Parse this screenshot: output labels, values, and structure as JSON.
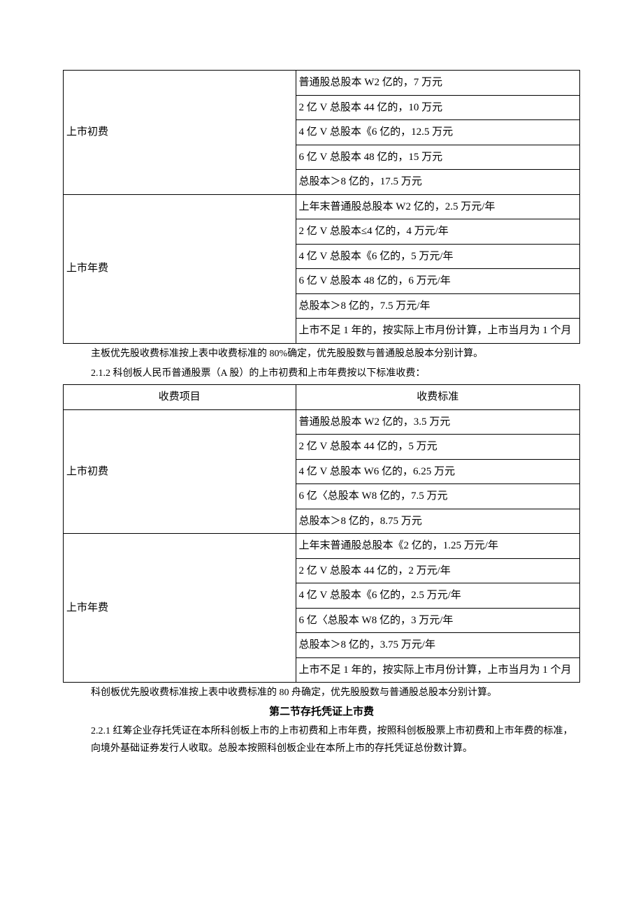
{
  "table1": {
    "rows": [
      {
        "left": "上市初费",
        "right": "普通股总股本 W2 亿的，7 万元",
        "rowspan": 5
      },
      {
        "right": "2 亿 V 总股本 44 亿的，10 万元"
      },
      {
        "right": "4 亿 V 总股本《6 亿的，12.5 万元"
      },
      {
        "right": "6 亿 V 总股本 48 亿的，15 万元"
      },
      {
        "right": "总股本＞8 亿的，17.5 万元"
      },
      {
        "left": "上市年费",
        "right": "上年末普通股总股本 W2 亿的，2.5 万元/年",
        "rowspan": 6
      },
      {
        "right": "2 亿 V 总股本≤4 亿的，4 万元/年"
      },
      {
        "right": "4 亿 V 总股本《6 亿的，5 万元/年"
      },
      {
        "right": "6 亿 V 总股本 48 亿的，6 万元/年"
      },
      {
        "right": "总股本＞8 亿的，7.5 万元/年"
      },
      {
        "right": "上市不足 1 年的，按实际上市月份计算，上市当月为 1 个月"
      }
    ]
  },
  "note1": "主板优先股收费标准按上表中收费标准的 80%确定，优先股股数与普通股总股本分别计算。",
  "heading212": "2.1.2 科创板人民币普通股票（A 股）的上市初费和上市年费按以下标准收费：",
  "table2": {
    "header_left": "收费项目",
    "header_right": "收费标准",
    "rows": [
      {
        "left": "上市初费",
        "right": "普通股总股本 W2 亿的，3.5 万元",
        "rowspan": 5
      },
      {
        "right": "2 亿 V 总股本 44 亿的，5 万元"
      },
      {
        "right": "4 亿 V 总股本 W6 亿的，6.25 万元"
      },
      {
        "right": "6 亿〈总股本 W8 亿的，7.5 万元"
      },
      {
        "right": "总股本＞8 亿的，8.75 万元"
      },
      {
        "left": "上市年费",
        "right": "上年末普通股总股本《2 亿的，1.25 万元/年",
        "rowspan": 6
      },
      {
        "right": "2 亿 V 总股本 44 亿的，2 万元/年"
      },
      {
        "right": "4 亿 V 总股本《6 亿的，2.5 万元/年"
      },
      {
        "right": "6 亿〈总股本 W8 亿的，3 万元/年"
      },
      {
        "right": "总股本＞8 亿的，3.75 万元/年"
      },
      {
        "right": "上市不足 1 年的，按实际上市月份计算，上市当月为 1 个月"
      }
    ]
  },
  "note2": "科创板优先股收费标准按上表中收费标准的 80 舟确定，优先股股数与普通股总股本分别计算。",
  "section_title": "第二节存托凭证上市费",
  "para221": "2.2.1 红筹企业存托凭证在本所科创板上市的上市初费和上市年费，按照科创板股票上市初费和上市年费的标准，向境外基础证券发行人收取。总股本按照科创板企业在本所上市的存托凭证总份数计算。"
}
